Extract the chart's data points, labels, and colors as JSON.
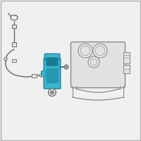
{
  "bg_color": "#f0f0f0",
  "border_color": "#b0b0b0",
  "line_color": "#999999",
  "dark_line": "#666666",
  "highlight_fill": "#3ab5d0",
  "highlight_edge": "#2288a0",
  "part_fill": "#e2e2e2",
  "part_edge": "#888888",
  "fig_width": 2.0,
  "fig_height": 2.0,
  "dpi": 100
}
